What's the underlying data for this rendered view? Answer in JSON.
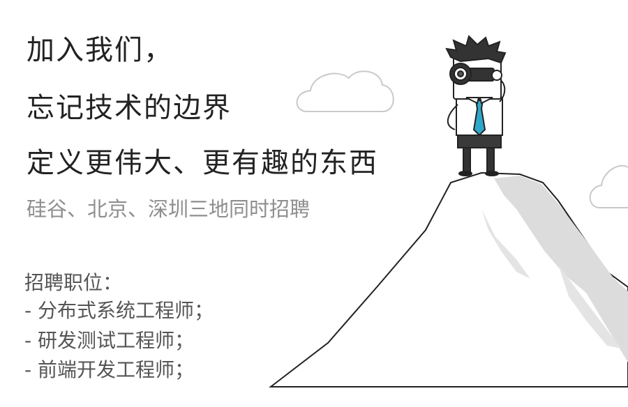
{
  "headline": {
    "line1": "加入我们，",
    "line2": "忘记技术的边界",
    "line3": "定义更伟大、更有趣的东西"
  },
  "locations": "硅谷、北京、深圳三地同时招聘",
  "positions": {
    "title": "招聘职位：",
    "items": [
      "- 分布式系统工程师；",
      "- 研发测试工程师；",
      "- 前端开发工程师；"
    ]
  },
  "icons": {
    "illustration": "character-on-mountain-with-telescope-illustration",
    "clouds": "cloud-icon"
  },
  "colors": {
    "tie": "#2fa7c9",
    "mountain_shadow": "#d9d9d9",
    "outline": "#222222",
    "locations_text": "#8e8e8e"
  }
}
